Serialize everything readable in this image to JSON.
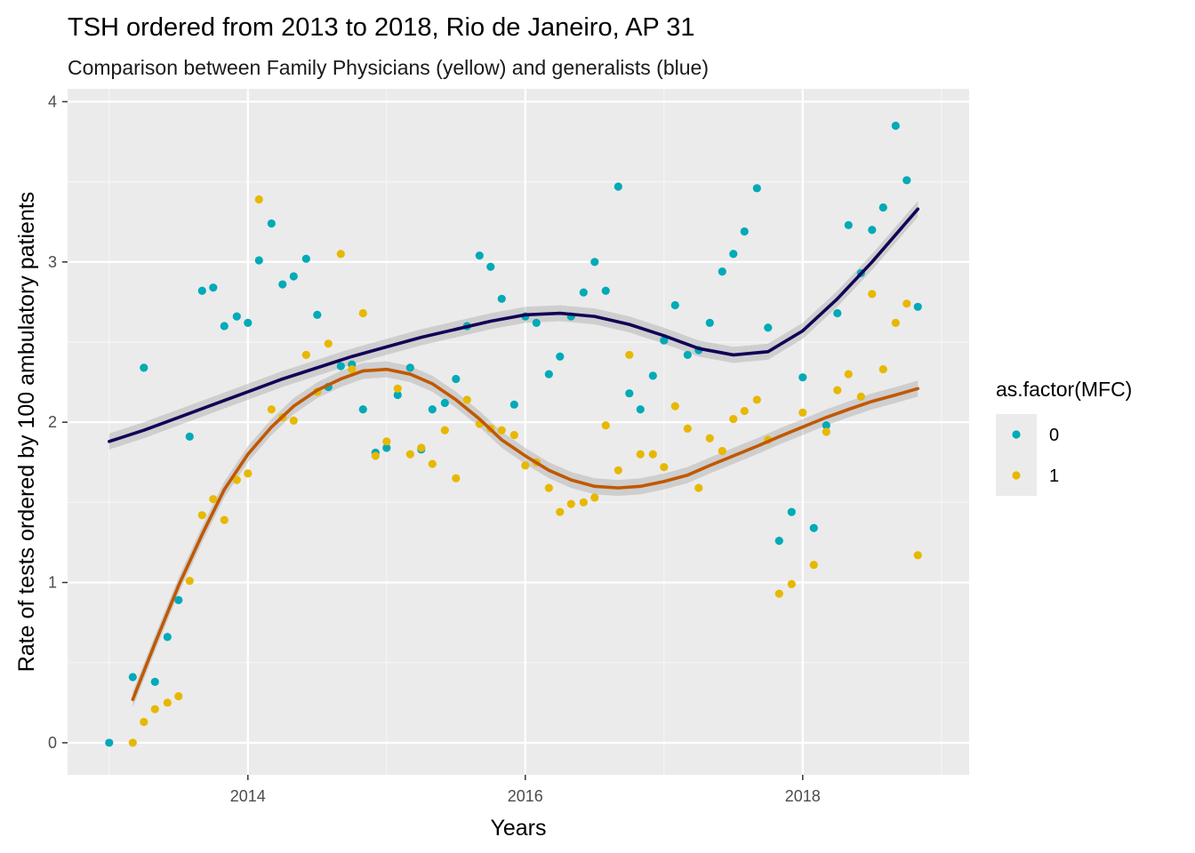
{
  "chart_data": {
    "type": "scatter",
    "title": "TSH ordered from 2013 to 2018, Rio de Janeiro, AP 31",
    "subtitle": "Comparison between Family Physicians (yellow) and generalists (blue)",
    "xlabel": "Years",
    "ylabel": "Rate of tests ordered by 100 ambulatory patients",
    "xlim": [
      2012.7,
      2019.2
    ],
    "ylim": [
      -0.2,
      4.08
    ],
    "x_ticks": [
      2014,
      2016,
      2018
    ],
    "x_minor": [
      2013,
      2015,
      2017,
      2019
    ],
    "y_ticks": [
      0,
      1,
      2,
      3,
      4
    ],
    "y_minor": [
      0.5,
      1.5,
      2.5,
      3.5
    ],
    "x_tick_labels": [
      "2014",
      "2016",
      "2018"
    ],
    "y_tick_labels": [
      "0",
      "1",
      "2",
      "3",
      "4"
    ],
    "grid": true,
    "legend": {
      "title": "as.factor(MFC)",
      "position": "right",
      "entries": [
        "0",
        "1"
      ]
    },
    "series": [
      {
        "name": "0",
        "color": "#00aab7",
        "smooth_color": "#120056",
        "points": [
          [
            2013.0,
            0.0
          ],
          [
            2013.17,
            0.41
          ],
          [
            2013.25,
            2.34
          ],
          [
            2013.33,
            0.38
          ],
          [
            2013.42,
            0.66
          ],
          [
            2013.5,
            0.89
          ],
          [
            2013.58,
            1.91
          ],
          [
            2013.67,
            2.82
          ],
          [
            2013.75,
            2.84
          ],
          [
            2013.83,
            2.6
          ],
          [
            2013.92,
            2.66
          ],
          [
            2014.0,
            2.62
          ],
          [
            2014.08,
            3.01
          ],
          [
            2014.17,
            3.24
          ],
          [
            2014.25,
            2.86
          ],
          [
            2014.33,
            2.91
          ],
          [
            2014.42,
            3.02
          ],
          [
            2014.5,
            2.67
          ],
          [
            2014.58,
            2.22
          ],
          [
            2014.67,
            2.35
          ],
          [
            2014.75,
            2.36
          ],
          [
            2014.83,
            2.08
          ],
          [
            2014.92,
            1.81
          ],
          [
            2015.0,
            1.84
          ],
          [
            2015.08,
            2.17
          ],
          [
            2015.17,
            2.34
          ],
          [
            2015.25,
            1.83
          ],
          [
            2015.33,
            2.08
          ],
          [
            2015.42,
            2.12
          ],
          [
            2015.5,
            2.27
          ],
          [
            2015.58,
            2.6
          ],
          [
            2015.67,
            3.04
          ],
          [
            2015.75,
            2.97
          ],
          [
            2015.83,
            2.77
          ],
          [
            2015.92,
            2.11
          ],
          [
            2016.0,
            2.66
          ],
          [
            2016.08,
            2.62
          ],
          [
            2016.17,
            2.3
          ],
          [
            2016.25,
            2.41
          ],
          [
            2016.33,
            2.66
          ],
          [
            2016.42,
            2.81
          ],
          [
            2016.5,
            3.0
          ],
          [
            2016.58,
            2.82
          ],
          [
            2016.67,
            3.47
          ],
          [
            2016.75,
            2.18
          ],
          [
            2016.83,
            2.08
          ],
          [
            2016.92,
            2.29
          ],
          [
            2017.0,
            2.51
          ],
          [
            2017.08,
            2.73
          ],
          [
            2017.17,
            2.42
          ],
          [
            2017.25,
            2.45
          ],
          [
            2017.33,
            2.62
          ],
          [
            2017.42,
            2.94
          ],
          [
            2017.5,
            3.05
          ],
          [
            2017.58,
            3.19
          ],
          [
            2017.67,
            3.46
          ],
          [
            2017.75,
            2.59
          ],
          [
            2017.83,
            1.26
          ],
          [
            2017.92,
            1.44
          ],
          [
            2018.0,
            2.28
          ],
          [
            2018.08,
            1.34
          ],
          [
            2018.17,
            1.98
          ],
          [
            2018.25,
            2.68
          ],
          [
            2018.33,
            3.23
          ],
          [
            2018.42,
            2.93
          ],
          [
            2018.5,
            3.2
          ],
          [
            2018.58,
            3.34
          ],
          [
            2018.67,
            3.85
          ],
          [
            2018.75,
            3.51
          ],
          [
            2018.83,
            2.72
          ]
        ],
        "smooth": [
          [
            2013.0,
            1.88
          ],
          [
            2013.25,
            1.95
          ],
          [
            2013.5,
            2.03
          ],
          [
            2013.75,
            2.11
          ],
          [
            2014.0,
            2.19
          ],
          [
            2014.25,
            2.27
          ],
          [
            2014.5,
            2.34
          ],
          [
            2014.75,
            2.41
          ],
          [
            2015.0,
            2.47
          ],
          [
            2015.25,
            2.53
          ],
          [
            2015.5,
            2.58
          ],
          [
            2015.75,
            2.63
          ],
          [
            2016.0,
            2.67
          ],
          [
            2016.25,
            2.68
          ],
          [
            2016.5,
            2.66
          ],
          [
            2016.75,
            2.61
          ],
          [
            2017.0,
            2.54
          ],
          [
            2017.25,
            2.46
          ],
          [
            2017.5,
            2.42
          ],
          [
            2017.75,
            2.44
          ],
          [
            2018.0,
            2.57
          ],
          [
            2018.25,
            2.77
          ],
          [
            2018.5,
            3.0
          ],
          [
            2018.83,
            3.33
          ]
        ]
      },
      {
        "name": "1",
        "color": "#e7b800",
        "smooth_color": "#c05800",
        "points": [
          [
            2013.17,
            0.0
          ],
          [
            2013.25,
            0.13
          ],
          [
            2013.33,
            0.21
          ],
          [
            2013.42,
            0.25
          ],
          [
            2013.5,
            0.29
          ],
          [
            2013.58,
            1.01
          ],
          [
            2013.67,
            1.42
          ],
          [
            2013.75,
            1.52
          ],
          [
            2013.83,
            1.39
          ],
          [
            2013.92,
            1.64
          ],
          [
            2014.0,
            1.68
          ],
          [
            2014.08,
            3.39
          ],
          [
            2014.17,
            2.08
          ],
          [
            2014.25,
            2.03
          ],
          [
            2014.33,
            2.01
          ],
          [
            2014.42,
            2.42
          ],
          [
            2014.5,
            2.19
          ],
          [
            2014.58,
            2.49
          ],
          [
            2014.67,
            3.05
          ],
          [
            2014.75,
            2.33
          ],
          [
            2014.83,
            2.68
          ],
          [
            2014.92,
            1.79
          ],
          [
            2015.0,
            1.88
          ],
          [
            2015.08,
            2.21
          ],
          [
            2015.17,
            1.8
          ],
          [
            2015.25,
            1.84
          ],
          [
            2015.33,
            1.74
          ],
          [
            2015.42,
            1.95
          ],
          [
            2015.5,
            1.65
          ],
          [
            2015.58,
            2.14
          ],
          [
            2015.67,
            1.99
          ],
          [
            2015.75,
            1.96
          ],
          [
            2015.83,
            1.95
          ],
          [
            2015.92,
            1.92
          ],
          [
            2016.0,
            1.73
          ],
          [
            2016.08,
            1.75
          ],
          [
            2016.17,
            1.59
          ],
          [
            2016.25,
            1.44
          ],
          [
            2016.33,
            1.49
          ],
          [
            2016.42,
            1.5
          ],
          [
            2016.5,
            1.53
          ],
          [
            2016.58,
            1.98
          ],
          [
            2016.67,
            1.7
          ],
          [
            2016.75,
            2.42
          ],
          [
            2016.83,
            1.8
          ],
          [
            2016.92,
            1.8
          ],
          [
            2017.0,
            1.72
          ],
          [
            2017.08,
            2.1
          ],
          [
            2017.17,
            1.96
          ],
          [
            2017.25,
            1.59
          ],
          [
            2017.33,
            1.9
          ],
          [
            2017.42,
            1.82
          ],
          [
            2017.5,
            2.02
          ],
          [
            2017.58,
            2.07
          ],
          [
            2017.67,
            2.14
          ],
          [
            2017.75,
            1.89
          ],
          [
            2017.83,
            0.93
          ],
          [
            2017.92,
            0.99
          ],
          [
            2018.0,
            2.06
          ],
          [
            2018.08,
            1.11
          ],
          [
            2018.17,
            1.94
          ],
          [
            2018.25,
            2.2
          ],
          [
            2018.33,
            2.3
          ],
          [
            2018.42,
            2.16
          ],
          [
            2018.5,
            2.8
          ],
          [
            2018.58,
            2.33
          ],
          [
            2018.67,
            2.62
          ],
          [
            2018.75,
            2.74
          ],
          [
            2018.83,
            1.17
          ]
        ],
        "smooth": [
          [
            2013.17,
            0.27
          ],
          [
            2013.33,
            0.62
          ],
          [
            2013.5,
            0.98
          ],
          [
            2013.67,
            1.3
          ],
          [
            2013.83,
            1.58
          ],
          [
            2014.0,
            1.8
          ],
          [
            2014.17,
            1.97
          ],
          [
            2014.33,
            2.1
          ],
          [
            2014.5,
            2.2
          ],
          [
            2014.67,
            2.27
          ],
          [
            2014.83,
            2.32
          ],
          [
            2015.0,
            2.33
          ],
          [
            2015.17,
            2.3
          ],
          [
            2015.33,
            2.24
          ],
          [
            2015.5,
            2.14
          ],
          [
            2015.67,
            2.02
          ],
          [
            2015.83,
            1.89
          ],
          [
            2016.0,
            1.79
          ],
          [
            2016.17,
            1.7
          ],
          [
            2016.33,
            1.64
          ],
          [
            2016.5,
            1.6
          ],
          [
            2016.67,
            1.59
          ],
          [
            2016.83,
            1.6
          ],
          [
            2017.0,
            1.63
          ],
          [
            2017.17,
            1.67
          ],
          [
            2017.33,
            1.73
          ],
          [
            2017.5,
            1.79
          ],
          [
            2017.67,
            1.85
          ],
          [
            2017.83,
            1.91
          ],
          [
            2018.0,
            1.97
          ],
          [
            2018.17,
            2.03
          ],
          [
            2018.33,
            2.08
          ],
          [
            2018.5,
            2.13
          ],
          [
            2018.67,
            2.17
          ],
          [
            2018.83,
            2.21
          ]
        ]
      }
    ]
  }
}
